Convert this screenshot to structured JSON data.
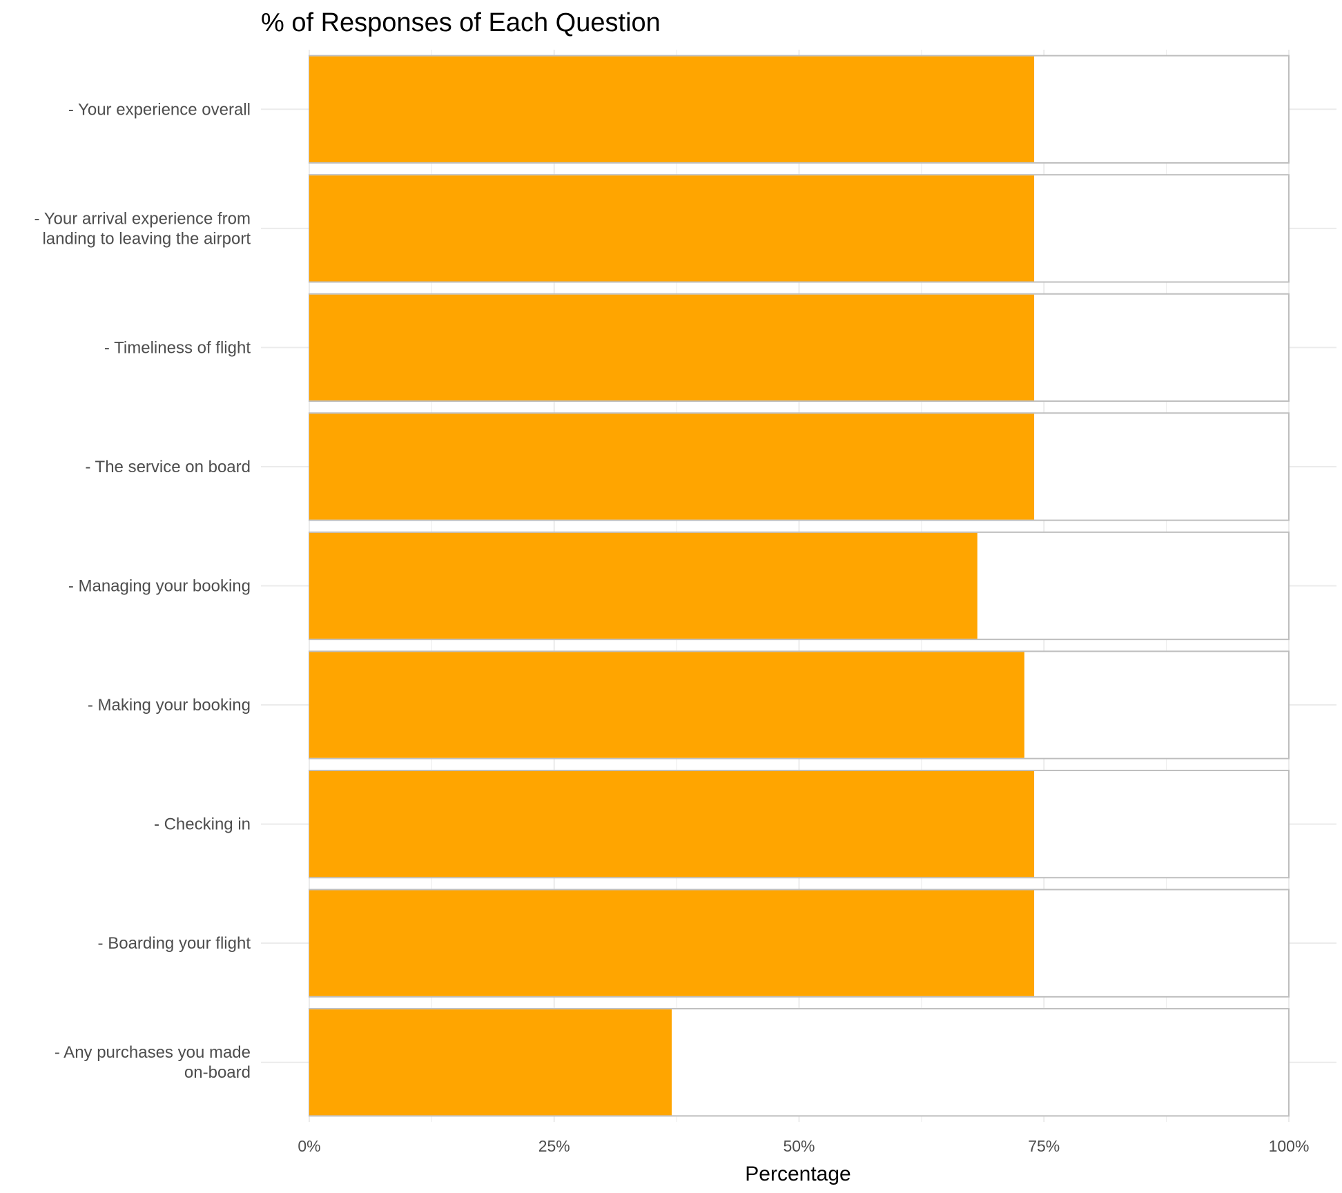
{
  "chart_data": {
    "type": "bar",
    "orientation": "horizontal",
    "title": "% of Responses of Each Question",
    "xlabel": "Percentage",
    "ylabel": "",
    "xlim": [
      0,
      100
    ],
    "x_ticks": [
      "0%",
      "25%",
      "50%",
      "75%",
      "100%"
    ],
    "grid": true,
    "legend": "none",
    "categories": [
      [
        "- Your experience overall"
      ],
      [
        "- Your arrival experience from",
        "landing to leaving the airport"
      ],
      [
        "- Timeliness of flight "
      ],
      [
        "- The service  on board"
      ],
      [
        "- Managing your booking  "
      ],
      [
        "- Making your booking "
      ],
      [
        "- Checking in"
      ],
      [
        "- Boarding your flight"
      ],
      [
        "- Any purchases you made",
        "on-board "
      ]
    ],
    "values": [
      74,
      74,
      74,
      74,
      68.2,
      73,
      74,
      74,
      37
    ],
    "total": 100,
    "colors": {
      "fill": "#FFA500",
      "outline": "#BEBEBE",
      "grid": "#EBEBEB",
      "tick_text": "#4D4D4D"
    }
  }
}
